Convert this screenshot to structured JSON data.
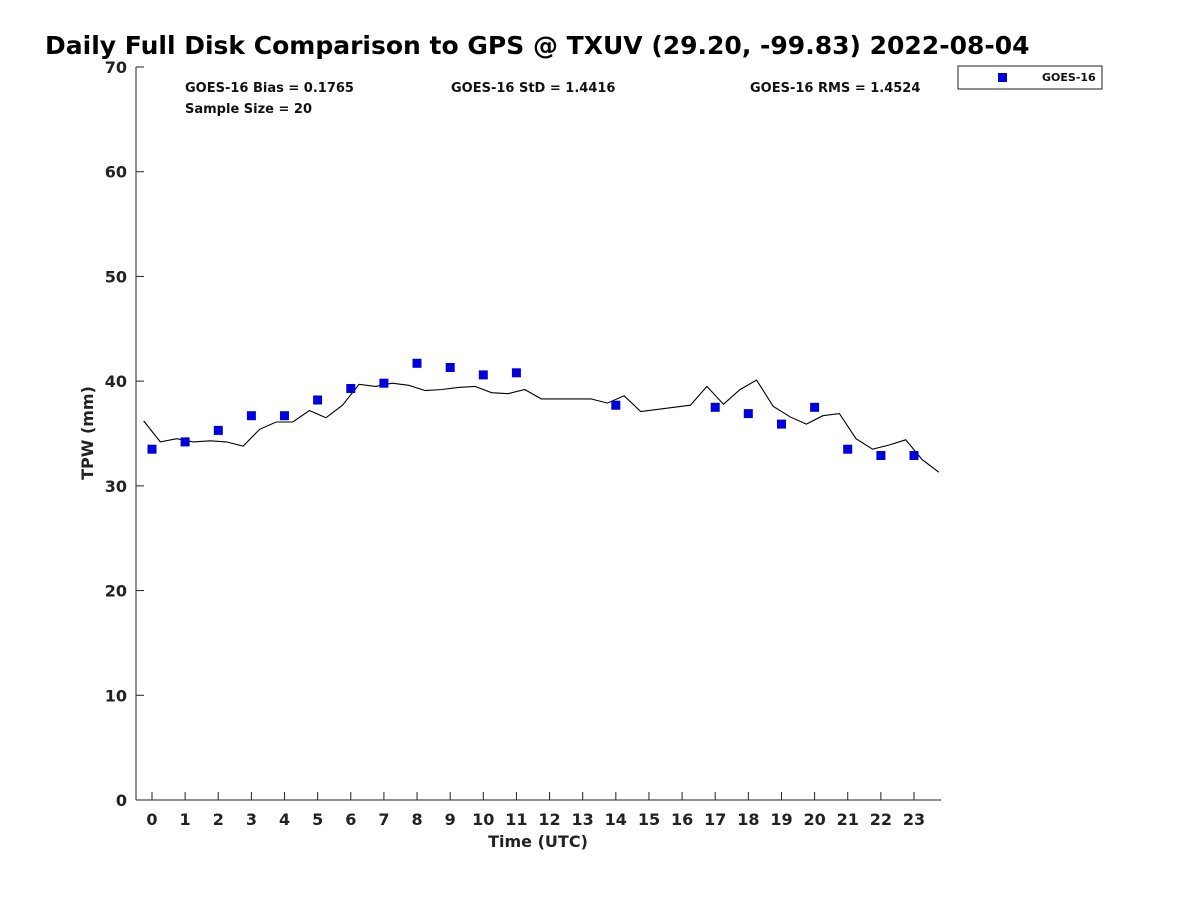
{
  "chart_data": {
    "type": "scatter",
    "title": "Daily Full Disk Comparison to GPS @ TXUV (29.20, -99.83) 2022-08-04",
    "xlabel": "Time (UTC)",
    "ylabel": "TPW (mm)",
    "xlim": [
      -0.5,
      23.75
    ],
    "ylim": [
      0,
      70
    ],
    "x_ticks": [
      0,
      1,
      2,
      3,
      4,
      5,
      6,
      7,
      8,
      9,
      10,
      11,
      12,
      13,
      14,
      15,
      16,
      17,
      18,
      19,
      20,
      21,
      22,
      23
    ],
    "y_ticks": [
      0,
      10,
      20,
      30,
      40,
      50,
      60,
      70
    ],
    "grid": false,
    "legend_position": "top-right (outside plot)",
    "stats": {
      "bias": "GOES-16 Bias = 0.1765",
      "std": "GOES-16 StD = 1.4416",
      "rms": "GOES-16 RMS = 1.4524",
      "sample_size": "Sample Size = 20"
    },
    "series": [
      {
        "name": "GOES-16",
        "kind": "markers",
        "color": "#0000dd",
        "marker": "square",
        "x": [
          0,
          1,
          2,
          3,
          4,
          5,
          6,
          7,
          8,
          9,
          10,
          11,
          14,
          17,
          18,
          19,
          20,
          21,
          22,
          23
        ],
        "y": [
          33.5,
          34.2,
          35.3,
          36.7,
          36.7,
          38.2,
          39.3,
          39.8,
          41.7,
          41.3,
          40.6,
          40.8,
          37.7,
          37.5,
          36.9,
          35.9,
          37.5,
          33.5,
          32.9,
          32.9
        ]
      },
      {
        "kind": "line",
        "color": "#000000",
        "x": [
          -0.25,
          0.25,
          0.75,
          1.25,
          1.75,
          2.25,
          2.75,
          3.25,
          3.75,
          4.25,
          4.75,
          5.25,
          5.75,
          6.25,
          6.75,
          7.25,
          7.75,
          8.25,
          8.75,
          9.25,
          9.75,
          10.25,
          10.75,
          11.25,
          11.75,
          12.25,
          12.75,
          13.25,
          13.75,
          14.25,
          14.75,
          15.25,
          15.75,
          16.25,
          16.75,
          17.25,
          17.75,
          18.25,
          18.75,
          19.25,
          19.75,
          20.25,
          20.75,
          21.25,
          21.75,
          22.25,
          22.75,
          23.25,
          23.75
        ],
        "y": [
          36.2,
          34.2,
          34.5,
          34.2,
          34.3,
          34.2,
          33.8,
          35.4,
          36.1,
          36.1,
          37.2,
          36.5,
          37.7,
          39.7,
          39.5,
          39.8,
          39.6,
          39.1,
          39.2,
          39.4,
          39.5,
          38.9,
          38.8,
          39.2,
          38.3,
          38.3,
          38.3,
          38.3,
          37.9,
          38.6,
          37.1,
          37.3,
          37.5,
          37.7,
          39.5,
          37.8,
          39.2,
          40.1,
          37.6,
          36.6,
          35.9,
          36.7,
          36.9,
          34.5,
          33.5,
          33.9,
          34.4,
          32.5,
          31.3
        ]
      }
    ]
  }
}
